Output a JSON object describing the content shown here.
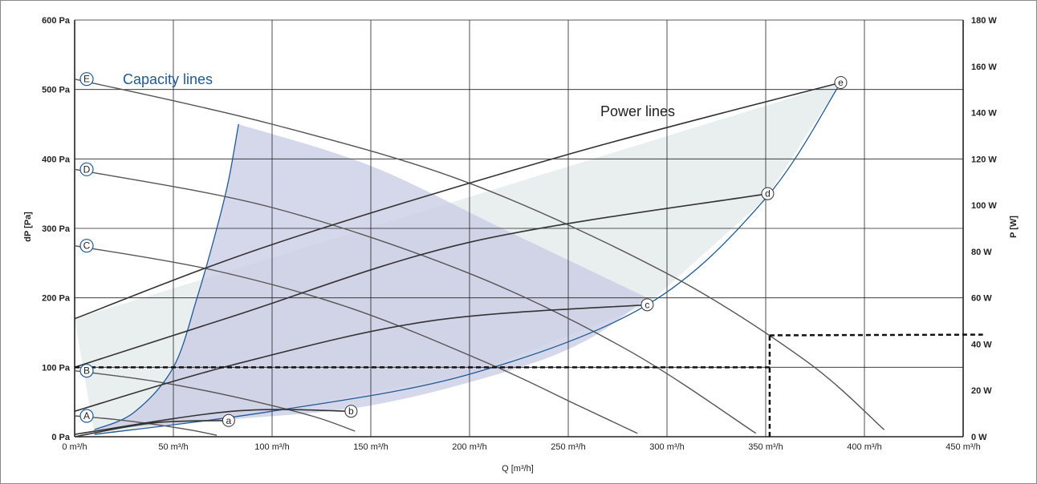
{
  "chart_data": {
    "type": "line",
    "title": "",
    "xlabel": "Q [m³/h]",
    "ylabel_left": "dP [Pa]",
    "ylabel_right": "P [W]",
    "xlim": [
      0,
      450
    ],
    "ylim_left": [
      0,
      600
    ],
    "ylim_right": [
      0,
      180
    ],
    "x_ticks": [
      "0 m³/h",
      "50 m³/h",
      "100 m³/h",
      "150 m³/h",
      "200 m³/h",
      "250 m³/h",
      "300 m³/h",
      "350 m³/h",
      "400 m³/h",
      "450 m³/h"
    ],
    "x_tick_values": [
      0,
      50,
      100,
      150,
      200,
      250,
      300,
      350,
      400,
      450
    ],
    "y_left_ticks": [
      "0 Pa",
      "100 Pa",
      "200 Pa",
      "300 Pa",
      "400 Pa",
      "500 Pa",
      "600 Pa"
    ],
    "y_left_tick_values": [
      0,
      100,
      200,
      300,
      400,
      500,
      600
    ],
    "y_right_ticks": [
      "0 W",
      "20 W",
      "40 W",
      "60 W",
      "80 W",
      "100 W",
      "120 W",
      "140 W",
      "160 W",
      "180 W"
    ],
    "y_right_tick_values": [
      0,
      20,
      40,
      60,
      80,
      100,
      120,
      140,
      160,
      180
    ],
    "grid": true,
    "annotations": {
      "capacity": "Capacity lines",
      "power": "Power lines"
    },
    "capacity_lines": [
      {
        "name": "A",
        "points": [
          [
            0,
            30
          ],
          [
            20,
            25
          ],
          [
            40,
            18
          ],
          [
            60,
            9
          ],
          [
            72,
            2
          ]
        ]
      },
      {
        "name": "B",
        "points": [
          [
            0,
            95
          ],
          [
            40,
            80
          ],
          [
            80,
            58
          ],
          [
            120,
            30
          ],
          [
            142,
            8
          ]
        ]
      },
      {
        "name": "C",
        "points": [
          [
            0,
            275
          ],
          [
            70,
            240
          ],
          [
            140,
            185
          ],
          [
            210,
            105
          ],
          [
            255,
            45
          ],
          [
            285,
            5
          ]
        ]
      },
      {
        "name": "D",
        "points": [
          [
            0,
            385
          ],
          [
            100,
            330
          ],
          [
            200,
            235
          ],
          [
            280,
            125
          ],
          [
            345,
            5
          ]
        ]
      },
      {
        "name": "E",
        "points": [
          [
            0,
            515
          ],
          [
            100,
            450
          ],
          [
            200,
            365
          ],
          [
            300,
            235
          ],
          [
            370,
            110
          ],
          [
            410,
            10
          ]
        ]
      }
    ],
    "power_lines": [
      {
        "name": "a",
        "points": [
          [
            0,
            0
          ],
          [
            40,
            6
          ],
          [
            78,
            7
          ]
        ]
      },
      {
        "name": "b",
        "points": [
          [
            0,
            1
          ],
          [
            80,
            11
          ],
          [
            140,
            11
          ]
        ]
      },
      {
        "name": "c",
        "points": [
          [
            0,
            11
          ],
          [
            80,
            31
          ],
          [
            180,
            50
          ],
          [
            290,
            57
          ]
        ]
      },
      {
        "name": "d",
        "points": [
          [
            0,
            30
          ],
          [
            80,
            52
          ],
          [
            200,
            84
          ],
          [
            351,
            105
          ]
        ]
      },
      {
        "name": "e",
        "points": [
          [
            0,
            51
          ],
          [
            100,
            83
          ],
          [
            250,
            122
          ],
          [
            388,
            153
          ]
        ]
      }
    ],
    "operating_points": [
      {
        "label": "a",
        "x": 78,
        "y_power": 7
      },
      {
        "label": "b",
        "x": 140,
        "y_power": 11
      },
      {
        "label": "c",
        "x": 290,
        "y_power": 57
      },
      {
        "label": "d",
        "x": 351,
        "y_power": 105
      },
      {
        "label": "e",
        "x": 388,
        "y_power": 153
      }
    ],
    "capacity_area_boundary": {
      "left": [
        [
          10,
          10
        ],
        [
          30,
          35
        ],
        [
          50,
          100
        ],
        [
          62,
          200
        ],
        [
          72,
          300
        ],
        [
          78,
          370
        ],
        [
          83,
          450
        ]
      ],
      "top": [
        [
          83,
          450
        ],
        [
          150,
          390
        ],
        [
          220,
          295
        ],
        [
          290,
          200
        ]
      ],
      "bottom": [
        [
          10,
          10
        ],
        [
          80,
          25
        ],
        [
          150,
          45
        ],
        [
          220,
          95
        ],
        [
          260,
          140
        ],
        [
          290,
          200
        ]
      ]
    },
    "power_area_boundary": {
      "upper": [
        [
          0,
          51
        ],
        [
          388,
          153
        ]
      ],
      "lower": [
        [
          10,
          1
        ],
        [
          100,
          11
        ],
        [
          200,
          27
        ],
        [
          290,
          57
        ],
        [
          350,
          103
        ],
        [
          388,
          153
        ]
      ]
    },
    "reference_dashes": [
      {
        "from": [
          0,
          100
        ],
        "to": [
          352,
          100
        ],
        "axis": "left"
      },
      {
        "from": [
          352,
          0
        ],
        "to": [
          352,
          146
        ],
        "axis": "left-x"
      },
      {
        "from": [
          352,
          146
        ],
        "to": [
          460,
          147
        ],
        "axis": "right"
      }
    ],
    "colors": {
      "capacity_line": "#555555",
      "power_line": "#333333",
      "capacity_area": "#c7cbe3",
      "power_area": "#e7ecec",
      "system_curve": "#1f5a96",
      "grid": "#222222",
      "letter_blue": "#1f5a96"
    }
  }
}
